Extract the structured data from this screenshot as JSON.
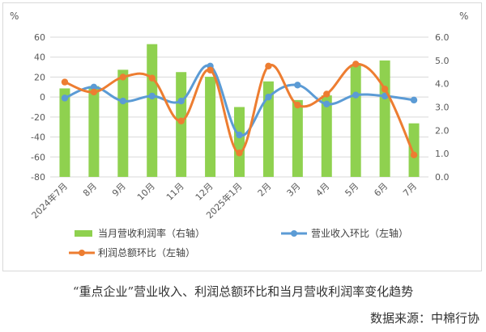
{
  "chart_data": {
    "type": "bar",
    "left_unit": "%",
    "right_unit": "%",
    "left_axis": {
      "min": -80,
      "max": 60,
      "step": 20,
      "ticks": [
        "-80",
        "-60",
        "-40",
        "-20",
        "0",
        "20",
        "40",
        "60"
      ]
    },
    "right_axis": {
      "min": 0.0,
      "max": 6.0,
      "step": 1.0,
      "ticks": [
        "0.0",
        "1.0",
        "2.0",
        "3.0",
        "4.0",
        "5.0",
        "6.0"
      ]
    },
    "categories": [
      "2024年7月",
      "8月",
      "9月",
      "10月",
      "11月",
      "12月",
      "2025年1月",
      "2月",
      "3月",
      "4月",
      "5月",
      "6月",
      "7月"
    ],
    "grid": true,
    "legend_position": "bottom",
    "series": [
      {
        "name": "当月营收利润率（右轴）",
        "type": "bar",
        "axis": "right",
        "color": "#8fd14f",
        "values": [
          3.8,
          3.9,
          4.6,
          5.7,
          4.5,
          4.3,
          3.0,
          4.1,
          3.3,
          3.5,
          4.8,
          5.0,
          2.3
        ]
      },
      {
        "name": "营业收入环比（左轴）",
        "type": "line",
        "axis": "left",
        "color": "#5b9bd5",
        "values": [
          -1,
          10,
          -4,
          1,
          -4,
          31,
          -38,
          0,
          12,
          -7,
          2,
          1,
          -3
        ]
      },
      {
        "name": "利润总额环比（左轴）",
        "type": "line",
        "axis": "left",
        "color": "#ed7d31",
        "values": [
          15,
          5,
          20,
          19,
          -24,
          27,
          -56,
          31,
          -8,
          3,
          33,
          8,
          -58
        ]
      }
    ]
  },
  "caption": "“重点企业”营业收入、利润总额环比和当月营收利润率变化趋势",
  "source": "数据来源：中棉行协"
}
